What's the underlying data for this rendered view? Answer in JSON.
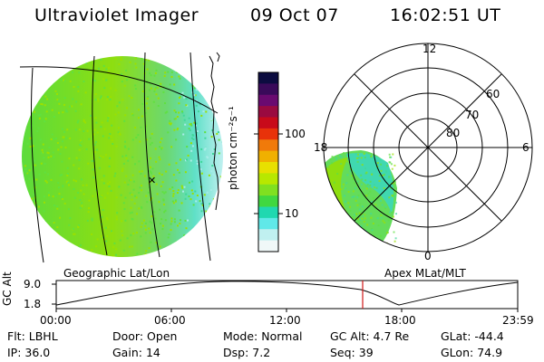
{
  "header": {
    "instrument": "Ultraviolet Imager",
    "date": "09 Oct 07",
    "time": "16:02:51 UT"
  },
  "colorbar": {
    "unit_label": "photon cm⁻²s⁻¹",
    "ticks": [
      "100",
      "10"
    ],
    "colors_top_to_bottom": [
      "#0c0c40",
      "#3a0a5a",
      "#6a0a70",
      "#9a0a40",
      "#c80a1a",
      "#e8320a",
      "#f07a0a",
      "#f0b000",
      "#e8e000",
      "#b8e800",
      "#80e020",
      "#40d840",
      "#20d8b0",
      "#60e8e8",
      "#c0f0f0",
      "#f0f8f8"
    ]
  },
  "geo_panel": {
    "caption": "Geographic Lat/Lon",
    "disk_colors": [
      "#60e040",
      "#9be000",
      "#40d89a",
      "#a8ece8"
    ]
  },
  "polar_panel": {
    "caption": "Apex MLat/MLT",
    "mlt_labels": {
      "top": "12",
      "left": "18",
      "right": "6",
      "bottom": "0"
    },
    "lat_labels": [
      "60",
      "70",
      "80"
    ]
  },
  "altitude_plot": {
    "ylabel": "GC Alt",
    "yticks": [
      "9.0",
      "1.8"
    ],
    "xticks": [
      "00:00",
      "06:00",
      "12:00",
      "18:00",
      "23:59"
    ]
  },
  "footer": {
    "row1": [
      {
        "label": "Flt:",
        "value": "LBHL"
      },
      {
        "label": "Door:",
        "value": "Open"
      },
      {
        "label": "Mode:",
        "value": "Normal"
      },
      {
        "label": "GC Alt:",
        "value": "4.7 Re"
      },
      {
        "label": "GLat:",
        "value": "-44.4"
      }
    ],
    "row2": [
      {
        "label": "IP:",
        "value": "36.0"
      },
      {
        "label": "Gain:",
        "value": "14"
      },
      {
        "label": "Dsp:",
        "value": "7.2"
      },
      {
        "label": "Seq:",
        "value": "39"
      },
      {
        "label": "GLon:",
        "value": "74.9"
      }
    ]
  }
}
